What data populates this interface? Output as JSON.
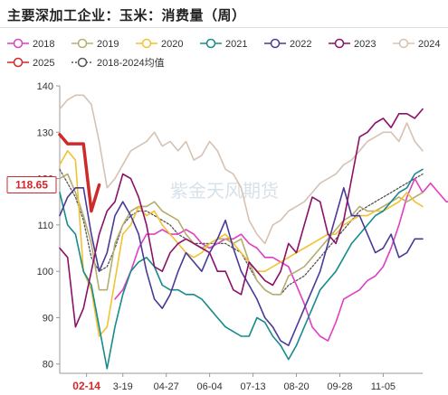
{
  "title": "主要深加工企业：玉米：消费量（周）",
  "watermark": "紫金天风期货",
  "callout_value": "118.65",
  "callout_date": "02-14",
  "chart_data": {
    "type": "line",
    "y_ticks": [
      80,
      90,
      100,
      110,
      120,
      130,
      140
    ],
    "ylim": [
      78,
      140
    ],
    "x_tick_labels": [
      "02-14",
      "3-19",
      "04-27",
      "06-04",
      "07-13",
      "08-20",
      "09-28",
      "11-05"
    ],
    "x_tick_weeks": [
      3.4,
      8,
      13.5,
      19,
      24.5,
      30,
      35.5,
      41
    ],
    "legend_placement": "top",
    "grid": false,
    "series": [
      {
        "name": "2018",
        "color": "#e03fc4",
        "dash": "",
        "width": 1.6,
        "start": 7,
        "values": [
          94,
          96,
          100,
          105,
          108,
          108,
          109,
          108,
          108,
          109,
          108,
          106,
          105,
          106,
          107,
          107,
          108,
          106,
          105,
          103,
          103,
          102,
          101,
          97,
          93,
          88,
          86,
          85,
          89,
          94,
          95,
          96,
          98,
          99,
          101,
          105,
          110,
          116,
          120,
          117,
          119,
          117,
          115,
          115,
          116,
          114,
          120
        ]
      },
      {
        "name": "2019",
        "color": "#b5ad70",
        "dash": "",
        "width": 1.6,
        "start": 0,
        "values": [
          120,
          121,
          117,
          112,
          106,
          96,
          96,
          106,
          110,
          113,
          114,
          114,
          115,
          113,
          112,
          111,
          108,
          106,
          105,
          106,
          107,
          107,
          106,
          107,
          102,
          98,
          96,
          95,
          95,
          99,
          100,
          101,
          103,
          105,
          107,
          109,
          111,
          112,
          114,
          113,
          113,
          114,
          115,
          116,
          115,
          116,
          117
        ]
      },
      {
        "name": "2020",
        "color": "#f2c230",
        "dash": "",
        "width": 1.6,
        "start": 0,
        "values": [
          123,
          126,
          124,
          100,
          96,
          86,
          88,
          98,
          108,
          110,
          114,
          112,
          113,
          110,
          108,
          106,
          104,
          103,
          104,
          106,
          107,
          108,
          106,
          104,
          102,
          100,
          100,
          101,
          102,
          103,
          104,
          105,
          106,
          107,
          108,
          108,
          110,
          111,
          112,
          112,
          113,
          113,
          114,
          115,
          117,
          115,
          114
        ]
      },
      {
        "name": "2021",
        "color": "#178c8a",
        "dash": "",
        "width": 1.6,
        "start": 0,
        "values": [
          117,
          110,
          108,
          100,
          97,
          88,
          79,
          88,
          95,
          100,
          102,
          103,
          101,
          97,
          96,
          96,
          95,
          95,
          94,
          92,
          90,
          88,
          87,
          86,
          86,
          90,
          89,
          86,
          84,
          81,
          84,
          88,
          92,
          96,
          98,
          100,
          103,
          106,
          108,
          110,
          112,
          113,
          115,
          117,
          118,
          121,
          122
        ]
      },
      {
        "name": "2022",
        "color": "#4a3a98",
        "dash": "",
        "width": 1.6,
        "start": 0,
        "values": [
          112,
          116,
          118,
          118,
          108,
          100,
          104,
          112,
          115,
          112,
          108,
          100,
          94,
          92,
          95,
          100,
          104,
          102,
          100,
          104,
          107,
          111,
          105,
          100,
          97,
          94,
          90,
          88,
          85,
          84,
          88,
          92,
          96,
          100,
          106,
          112,
          118,
          112,
          112,
          108,
          104,
          105,
          108,
          103,
          104,
          107,
          107
        ]
      },
      {
        "name": "2023",
        "color": "#8c1068",
        "dash": "",
        "width": 1.6,
        "start": 0,
        "values": [
          105,
          103,
          88,
          92,
          100,
          108,
          113,
          115,
          121,
          120,
          116,
          110,
          101,
          100,
          104,
          106,
          107,
          106,
          105,
          104,
          100,
          100,
          96,
          95,
          102,
          100,
          98,
          97,
          100,
          106,
          104,
          110,
          116,
          115,
          108,
          106,
          111,
          120,
          129,
          130,
          132,
          133,
          131,
          134,
          134,
          133,
          135
        ]
      },
      {
        "name": "2024",
        "color": "#d6c2b2",
        "dash": "",
        "width": 1.6,
        "start": 0,
        "values": [
          135,
          137,
          138,
          138,
          136,
          128,
          118,
          120,
          123,
          126,
          127,
          128,
          130,
          127,
          128,
          126,
          128,
          124,
          125,
          128,
          126,
          122,
          121,
          118,
          111,
          108,
          106,
          110,
          111,
          113,
          114,
          115,
          117,
          119,
          120,
          121,
          123,
          124,
          126,
          128,
          129,
          130,
          130,
          128,
          132,
          128,
          126
        ]
      },
      {
        "name": "2025",
        "color": "#cf2a2a",
        "dash": "",
        "width": 3.5,
        "start": 0,
        "values": [
          129.5,
          127.5,
          127.5,
          127.5,
          113,
          118.65
        ]
      },
      {
        "name": "2018-2024均值",
        "color": "#555555",
        "dash": "2,2",
        "width": 1.3,
        "start": 0,
        "values": [
          122,
          119,
          116,
          111,
          103,
          100,
          101,
          105,
          110,
          112,
          113,
          113,
          112,
          111,
          110,
          108,
          107,
          106,
          106,
          106,
          106,
          106,
          105,
          104,
          101,
          98,
          96,
          95,
          95,
          97,
          98,
          99,
          101,
          103,
          105,
          107,
          109,
          111,
          113,
          114,
          115,
          116,
          117,
          118,
          119,
          120,
          121
        ]
      }
    ]
  }
}
